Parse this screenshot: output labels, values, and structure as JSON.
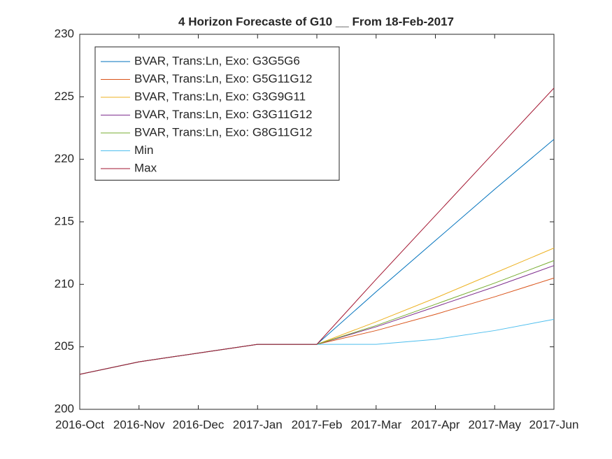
{
  "chart_data": {
    "type": "line",
    "title": "4 Horizon Forecaste of G10 __ From 18-Feb-2017",
    "categories": [
      "2016-Oct",
      "2016-Nov",
      "2016-Dec",
      "2017-Jan",
      "2017-Feb",
      "2017-Mar",
      "2017-Apr",
      "2017-May",
      "2017-Jun"
    ],
    "series": [
      {
        "name": "BVAR, Trans:Ln, Exo: G3G5G6",
        "color": "#0072BD",
        "values": [
          202.8,
          203.8,
          204.5,
          205.2,
          205.2,
          209.4,
          213.5,
          217.6,
          221.6
        ]
      },
      {
        "name": "BVAR, Trans:Ln, Exo: G5G11G12",
        "color": "#D95319",
        "values": [
          202.8,
          203.8,
          204.5,
          205.2,
          205.2,
          206.3,
          207.6,
          209.0,
          210.5
        ]
      },
      {
        "name": "BVAR, Trans:Ln, Exo: G3G9G11",
        "color": "#EDB120",
        "values": [
          202.8,
          203.8,
          204.5,
          205.2,
          205.2,
          207.0,
          208.9,
          210.9,
          212.9
        ]
      },
      {
        "name": "BVAR, Trans:Ln, Exo: G3G11G12",
        "color": "#7E2F8E",
        "values": [
          202.8,
          203.8,
          204.5,
          205.2,
          205.2,
          206.6,
          208.2,
          209.8,
          211.5
        ]
      },
      {
        "name": "BVAR, Trans:Ln, Exo: G8G11G12",
        "color": "#77AC30",
        "values": [
          202.8,
          203.8,
          204.5,
          205.2,
          205.2,
          206.7,
          208.4,
          210.1,
          211.9
        ]
      },
      {
        "name": "Min",
        "color": "#4DBEEE",
        "values": [
          202.8,
          203.8,
          204.5,
          205.2,
          205.2,
          205.2,
          205.6,
          206.3,
          207.2
        ]
      },
      {
        "name": "Max",
        "color": "#A2142F",
        "values": [
          202.8,
          203.8,
          204.5,
          205.2,
          205.2,
          210.4,
          215.5,
          220.6,
          225.7
        ]
      }
    ],
    "ylim": [
      200,
      230
    ],
    "yticks": [
      200,
      205,
      210,
      215,
      220,
      225,
      230
    ],
    "legend": "upper left"
  }
}
